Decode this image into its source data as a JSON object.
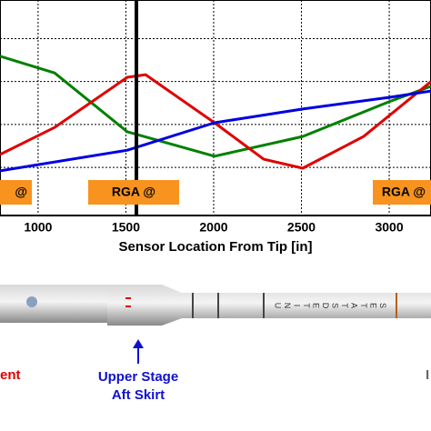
{
  "chart_data": {
    "type": "line",
    "x_label": "Sensor Location From Tip [in]",
    "xlim": [
      783,
      3238
    ],
    "xticks": [
      1000,
      1500,
      2000,
      2500,
      3000
    ],
    "ylim": [
      -0.1,
      4.9
    ],
    "ygrid": [
      1,
      2,
      3,
      4
    ],
    "grid": true,
    "vline": 1560,
    "series": [
      {
        "color": "#008000",
        "x": [
          783,
          1094,
          1508,
          2005,
          2507,
          2999,
          3238
        ],
        "values": [
          3.59,
          3.2,
          1.83,
          1.26,
          1.72,
          2.53,
          2.89
        ]
      },
      {
        "color": "#e00000",
        "x": [
          783,
          1094,
          1508,
          1612,
          2005,
          2285,
          2507,
          2854,
          3238
        ],
        "values": [
          1.3,
          1.93,
          3.1,
          3.16,
          2.04,
          1.19,
          0.98,
          1.72,
          3.0
        ]
      },
      {
        "color": "#0000e0",
        "x": [
          783,
          1508,
          2005,
          2507,
          2999,
          3238
        ],
        "values": [
          0.92,
          1.4,
          2.04,
          2.36,
          2.63,
          2.78
        ]
      }
    ],
    "annotations": [
      "@",
      "RGA @",
      "RGA @"
    ]
  },
  "diagram": {
    "rocket_text": "UNITEDSTATES",
    "left_label": "ent",
    "upper_stage": "Upper Stage",
    "aft_skirt": "Aft Skirt",
    "right_label": "I"
  }
}
